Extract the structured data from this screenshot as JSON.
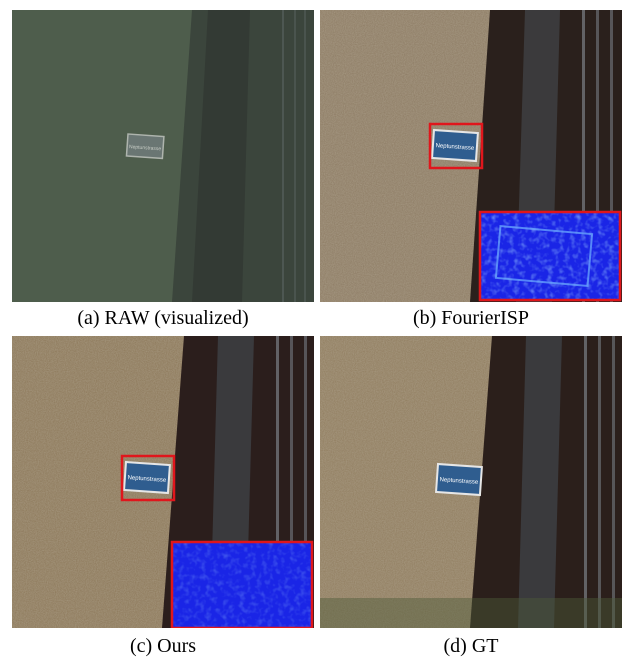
{
  "panels": [
    {
      "id": "a",
      "caption": "(a) RAW (visualized)"
    },
    {
      "id": "b",
      "caption": "(b) FourierISP"
    },
    {
      "id": "c",
      "caption": "(c) Ours"
    },
    {
      "id": "d",
      "caption": "(d) GT"
    }
  ],
  "sign_text": "Neptunstrasse",
  "colors": {
    "raw_wall": "#4c5a4d",
    "wall": "#8f7b62",
    "frame_dark": "#2a1f1c",
    "sign_blue": "#2f5d8f",
    "highlight_box": "#e0161c",
    "error_map": "#1a25e6"
  }
}
